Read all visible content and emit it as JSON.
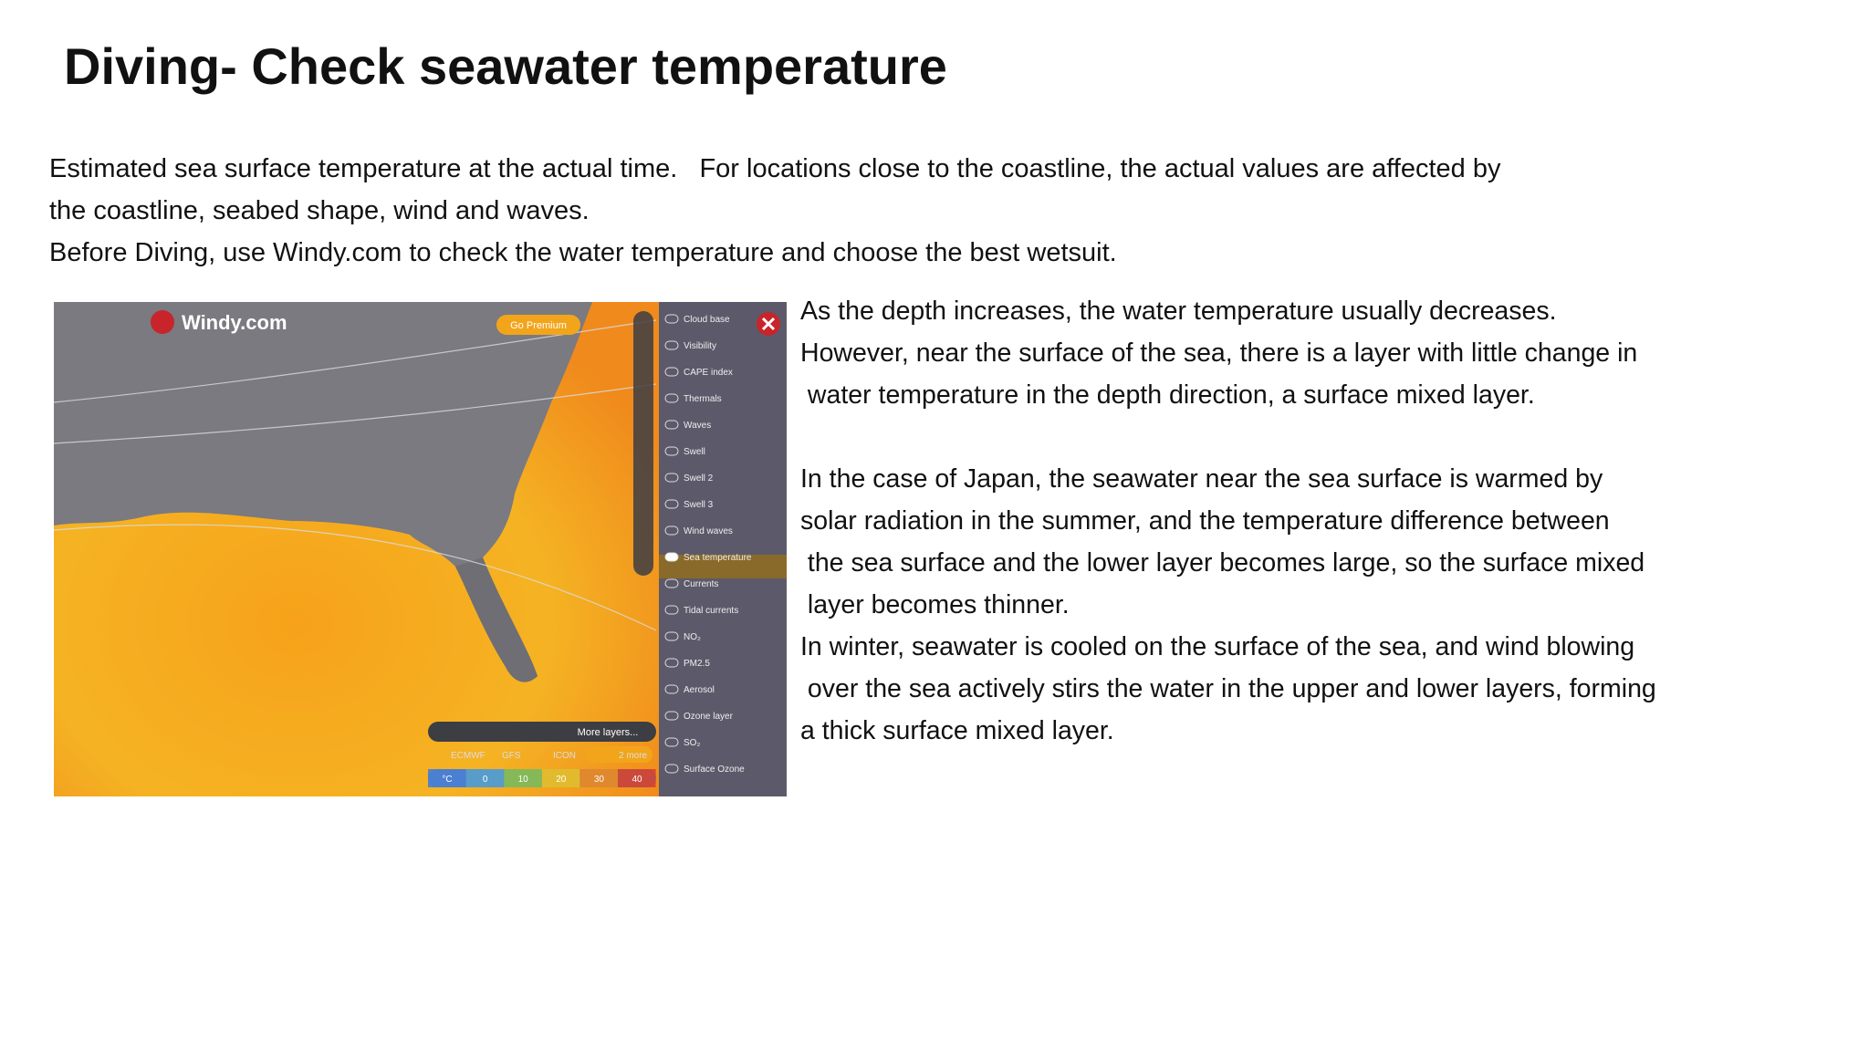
{
  "title": "Diving- Check seawater temperature",
  "intro": {
    "lines": [
      "Estimated sea surface temperature at the actual time.   For locations close to the coastline, the actual values are affected by",
      "the coastline, seabed shape, wind and waves.",
      "Before Diving, use Windy.com to check the water temperature and choose the best wetsuit."
    ]
  },
  "body": {
    "paragraphs": [
      [
        "As the depth increases, the water temperature usually decreases.",
        "However, near the surface of the sea, there is a layer with little change in",
        " water temperature in the depth direction, a surface mixed layer."
      ],
      [
        "In the case of Japan, the seawater near the sea surface is warmed by",
        "solar radiation in the summer, and the temperature difference between",
        " the sea surface and the lower layer becomes large, so the surface mixed",
        " layer becomes thinner.",
        "In winter, seawater is cooled on the surface of the sea, and wind blowing",
        " over the sea actively stirs the water in the upper and lower layers, forming",
        "a thick surface mixed layer."
      ]
    ]
  },
  "screenshot": {
    "logo": "Windy.com",
    "premium_button": "Go Premium",
    "layers": [
      "Cloud base",
      "Visibility",
      "CAPE index",
      "Thermals",
      "Waves",
      "Swell",
      "Swell 2",
      "Swell 3",
      "Wind waves",
      "Sea temperature",
      "Currents",
      "Tidal currents",
      "NO₂",
      "PM2.5",
      "Aerosol",
      "Ozone layer",
      "SO₂",
      "Surface Ozone"
    ],
    "active_layer": "Sea temperature",
    "more_layers": "More layers...",
    "models": [
      "ECMWF",
      "GFS",
      "ICON",
      "2 more"
    ],
    "legend": [
      "°C",
      "0",
      "10",
      "20",
      "30",
      "40"
    ]
  }
}
